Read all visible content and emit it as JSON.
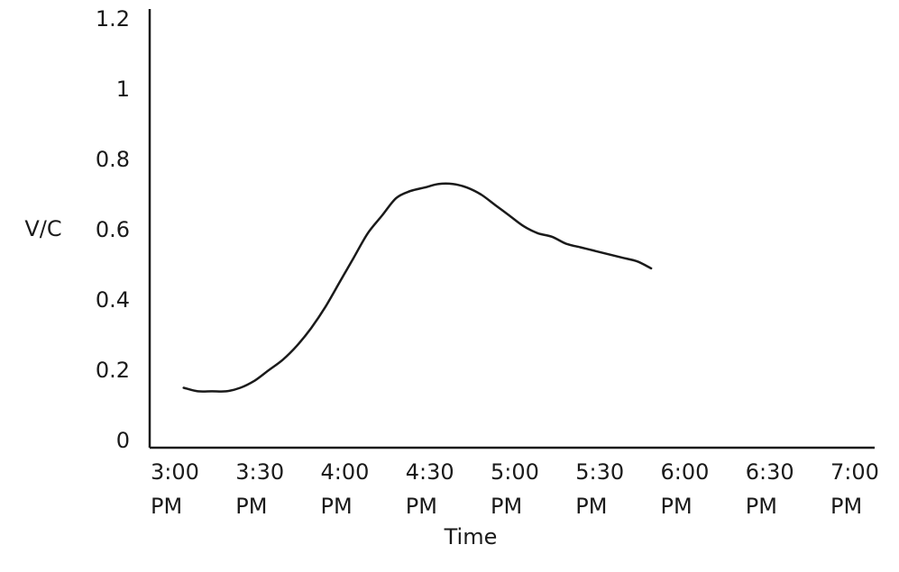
{
  "chart_data": {
    "type": "line",
    "title": "",
    "xlabel": "Time",
    "ylabel": "V/C",
    "x_ticks": [
      [
        "3:00",
        "PM"
      ],
      [
        "3:30",
        "PM"
      ],
      [
        "4:00",
        "PM"
      ],
      [
        "4:30",
        "PM"
      ],
      [
        "5:00",
        "PM"
      ],
      [
        "5:30",
        "PM"
      ],
      [
        "6:00",
        "PM"
      ],
      [
        "6:30",
        "PM"
      ],
      [
        "7:00",
        "PM"
      ]
    ],
    "y_ticks": [
      "0",
      "0.2",
      "0.4",
      "0.6",
      "0.8",
      "1",
      "1.2"
    ],
    "ylim": [
      0,
      1.2
    ],
    "x_range_minutes_past_3pm": [
      0,
      240
    ],
    "grid": false,
    "line_color": "#1a1a1a",
    "series": [
      {
        "x_minutes_past_3pm": [
          5,
          10,
          15,
          20,
          25,
          30,
          35,
          40,
          45,
          50,
          55,
          60,
          65,
          70,
          75,
          80,
          85,
          90,
          95,
          100,
          105,
          110,
          115,
          120,
          125,
          130,
          135,
          140,
          145,
          150,
          155,
          160,
          165,
          170
        ],
        "y": [
          0.15,
          0.14,
          0.14,
          0.14,
          0.15,
          0.17,
          0.2,
          0.23,
          0.27,
          0.32,
          0.38,
          0.45,
          0.52,
          0.59,
          0.64,
          0.69,
          0.71,
          0.72,
          0.73,
          0.73,
          0.72,
          0.7,
          0.67,
          0.64,
          0.61,
          0.59,
          0.58,
          0.56,
          0.55,
          0.54,
          0.53,
          0.52,
          0.51,
          0.49
        ]
      }
    ]
  }
}
